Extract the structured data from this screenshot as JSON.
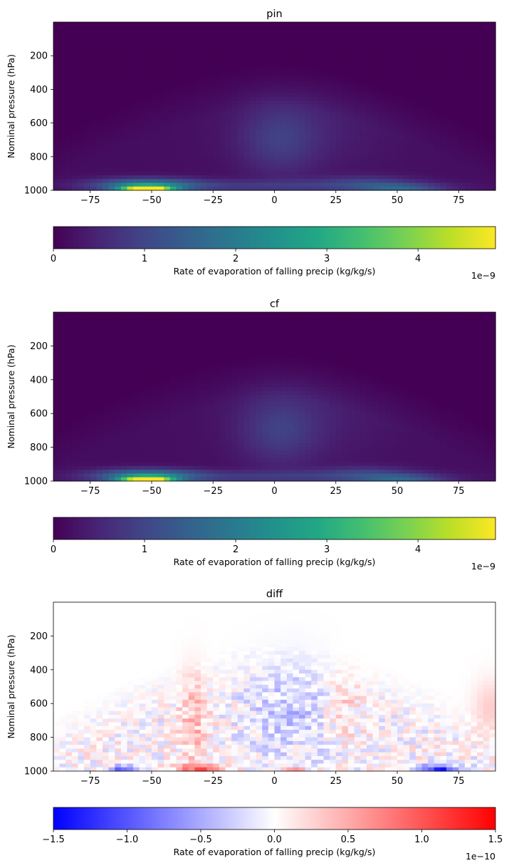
{
  "chart_data": [
    {
      "type": "heatmap",
      "title": "pin",
      "ylabel": "Nominal pressure (hPa)",
      "x_ticks": [
        "−75",
        "−50",
        "−25",
        "0",
        "25",
        "50",
        "75"
      ],
      "x_tick_values": [
        -75,
        -50,
        -25,
        0,
        25,
        50,
        75
      ],
      "y_ticks": [
        "200",
        "400",
        "600",
        "800",
        "1000"
      ],
      "y_tick_values": [
        200,
        400,
        600,
        800,
        1000
      ],
      "xlim": [
        -90,
        90
      ],
      "ylim": [
        1000,
        0
      ],
      "colormap": "viridis",
      "colorbar": {
        "label": "Rate of evaporation of falling precip (kg/kg/s)",
        "ticks": [
          "0",
          "1",
          "2",
          "3",
          "4"
        ],
        "tick_values": [
          0,
          1,
          2,
          3,
          4
        ],
        "range": [
          0,
          4.85
        ],
        "offset": "1e−9"
      }
    },
    {
      "type": "heatmap",
      "title": "cf",
      "ylabel": "Nominal pressure (hPa)",
      "x_ticks": [
        "−75",
        "−50",
        "−25",
        "0",
        "25",
        "50",
        "75"
      ],
      "x_tick_values": [
        -75,
        -50,
        -25,
        0,
        25,
        50,
        75
      ],
      "y_ticks": [
        "200",
        "400",
        "600",
        "800",
        "1000"
      ],
      "y_tick_values": [
        200,
        400,
        600,
        800,
        1000
      ],
      "xlim": [
        -90,
        90
      ],
      "ylim": [
        1000,
        0
      ],
      "colormap": "viridis",
      "colorbar": {
        "label": "Rate of evaporation of falling precip (kg/kg/s)",
        "ticks": [
          "0",
          "1",
          "2",
          "3",
          "4"
        ],
        "tick_values": [
          0,
          1,
          2,
          3,
          4
        ],
        "range": [
          0,
          4.85
        ],
        "offset": "1e−9"
      }
    },
    {
      "type": "heatmap",
      "title": "diff",
      "ylabel": "Nominal pressure (hPa)",
      "x_ticks": [
        "−75",
        "−50",
        "−25",
        "0",
        "25",
        "50",
        "75"
      ],
      "x_tick_values": [
        -75,
        -50,
        -25,
        0,
        25,
        50,
        75
      ],
      "y_ticks": [
        "200",
        "400",
        "600",
        "800",
        "1000"
      ],
      "y_tick_values": [
        200,
        400,
        600,
        800,
        1000
      ],
      "xlim": [
        -90,
        90
      ],
      "ylim": [
        1000,
        0
      ],
      "colormap": "bwr",
      "colorbar": {
        "label": "Rate of evaporation of falling precip (kg/kg/s)",
        "ticks": [
          "−1.5",
          "−1.0",
          "−0.5",
          "0.0",
          "0.5",
          "1.0",
          "1.5"
        ],
        "tick_values": [
          -1.5,
          -1.0,
          -0.5,
          0.0,
          0.5,
          1.0,
          1.5
        ],
        "range": [
          -1.5,
          1.5
        ],
        "offset": "1e−10"
      }
    }
  ]
}
